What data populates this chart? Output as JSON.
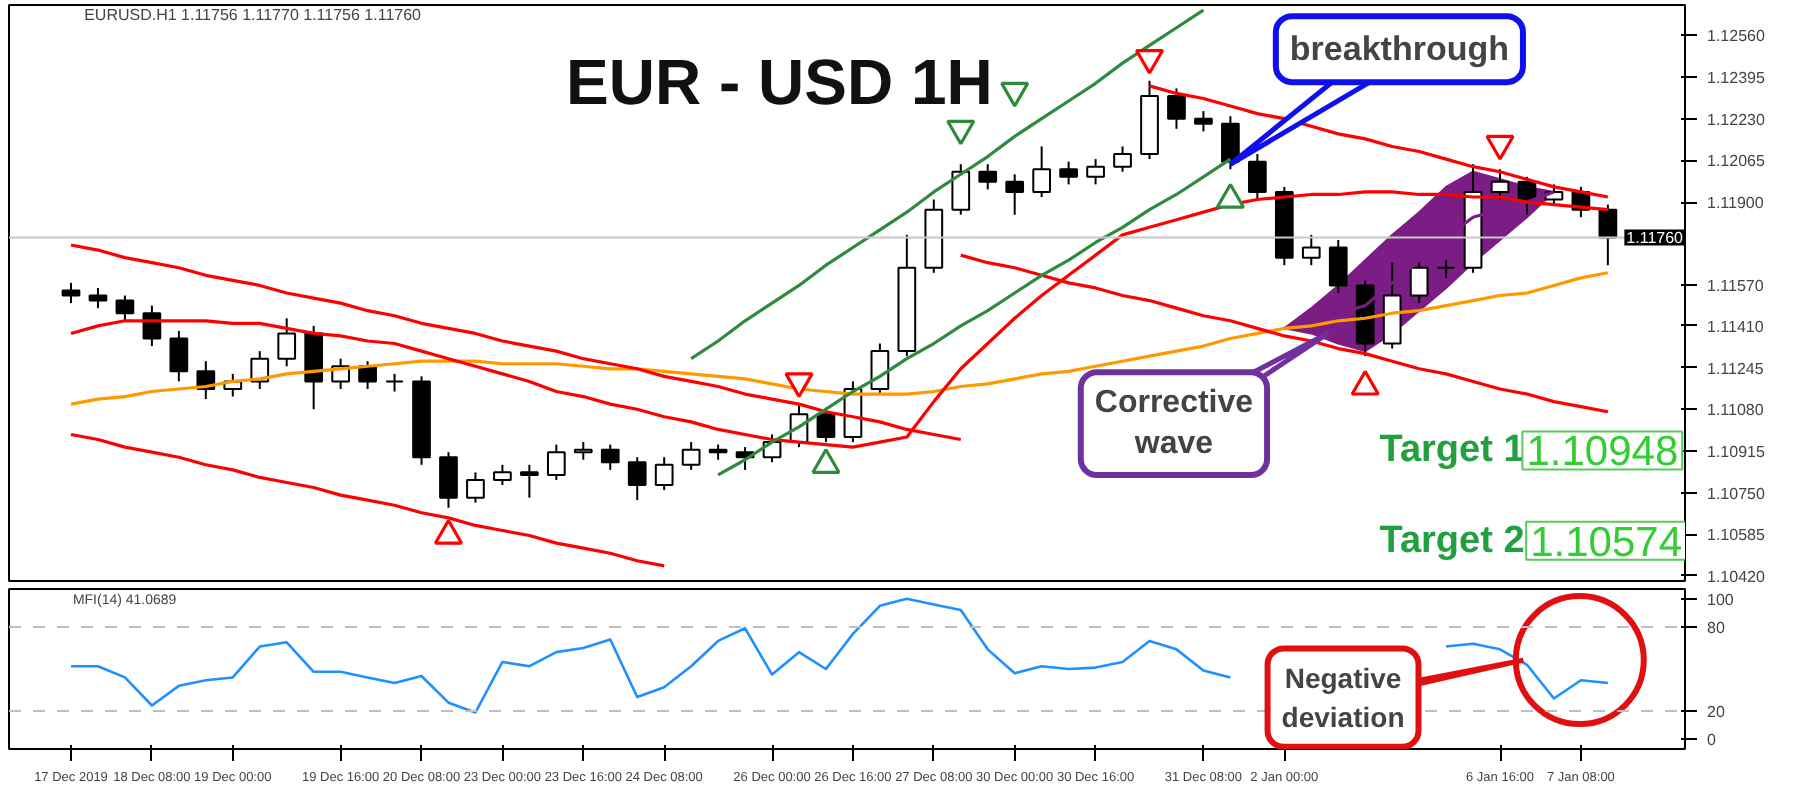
{
  "chart_data": [
    {
      "type": "candlestick",
      "title": "EUR - USD 1H",
      "subtitle": "EURUSD.H1 1.11756 1.11770 1.11756 1.11760",
      "color": "#000000",
      "categories": [
        null,
        null,
        null,
        null,
        null,
        null,
        null,
        null,
        null,
        null,
        null,
        null,
        null,
        null,
        null,
        null,
        null,
        null,
        null,
        null,
        null,
        null,
        null,
        null,
        null,
        null,
        null,
        null,
        null,
        null,
        null,
        null,
        null,
        null,
        null,
        null,
        null,
        null,
        null,
        null,
        null,
        null,
        null,
        null,
        null,
        null,
        null,
        null,
        null,
        null,
        null,
        null,
        null,
        null,
        null,
        null,
        null,
        null
      ],
      "ohlc": [
        [
          1.1155,
          1.1158,
          1.115,
          1.1153
        ],
        [
          1.1153,
          1.1156,
          1.1148,
          1.1151
        ],
        [
          1.1151,
          1.1153,
          1.1143,
          1.1146
        ],
        [
          1.1146,
          1.1149,
          1.1133,
          1.1136
        ],
        [
          1.1136,
          1.1139,
          1.1119,
          1.1123
        ],
        [
          1.1123,
          1.1127,
          1.1112,
          1.1116
        ],
        [
          1.1116,
          1.1122,
          1.1113,
          1.1119
        ],
        [
          1.1119,
          1.1131,
          1.1116,
          1.1128
        ],
        [
          1.1128,
          1.1144,
          1.1125,
          1.1138
        ],
        [
          1.1138,
          1.1141,
          1.1108,
          1.1119
        ],
        [
          1.1119,
          1.1128,
          1.1116,
          1.1125
        ],
        [
          1.1125,
          1.1127,
          1.1116,
          1.1119
        ],
        [
          1.1119,
          1.1122,
          1.1115,
          1.1119
        ],
        [
          1.1119,
          1.1121,
          1.1086,
          1.1089
        ],
        [
          1.1089,
          1.1091,
          1.1069,
          1.1073
        ],
        [
          1.1073,
          1.1083,
          1.1071,
          1.108
        ],
        [
          1.108,
          1.1086,
          1.1078,
          1.1083
        ],
        [
          1.1083,
          1.1086,
          1.1073,
          1.1082
        ],
        [
          1.1082,
          1.1094,
          1.108,
          1.1091
        ],
        [
          1.1091,
          1.1095,
          1.1088,
          1.1092
        ],
        [
          1.1092,
          1.1094,
          1.1084,
          1.1087
        ],
        [
          1.1087,
          1.1089,
          1.1072,
          1.1078
        ],
        [
          1.1078,
          1.1089,
          1.1076,
          1.1086
        ],
        [
          1.1086,
          1.1095,
          1.1084,
          1.1092
        ],
        [
          1.1092,
          1.1094,
          1.1088,
          1.1091
        ],
        [
          1.1091,
          1.1093,
          1.1084,
          1.1089
        ],
        [
          1.1089,
          1.1098,
          1.1087,
          1.1095
        ],
        [
          1.1095,
          1.111,
          1.1093,
          1.1106
        ],
        [
          1.1106,
          1.1108,
          1.1095,
          1.1097
        ],
        [
          1.1097,
          1.1119,
          1.1095,
          1.1116
        ],
        [
          1.1116,
          1.1134,
          1.1114,
          1.1131
        ],
        [
          1.1131,
          1.1177,
          1.1129,
          1.1164
        ],
        [
          1.1164,
          1.1191,
          1.1162,
          1.1187
        ],
        [
          1.1187,
          1.1205,
          1.1185,
          1.1202
        ],
        [
          1.1202,
          1.1205,
          1.1195,
          1.1198
        ],
        [
          1.1198,
          1.1201,
          1.1185,
          1.1194
        ],
        [
          1.1194,
          1.1212,
          1.1192,
          1.1203
        ],
        [
          1.1203,
          1.1206,
          1.1197,
          1.12
        ],
        [
          1.12,
          1.1207,
          1.1197,
          1.1204
        ],
        [
          1.1204,
          1.1212,
          1.1202,
          1.1209
        ],
        [
          1.1209,
          1.1238,
          1.1207,
          1.1232
        ],
        [
          1.1232,
          1.1235,
          1.1219,
          1.1223
        ],
        [
          1.1223,
          1.1226,
          1.1218,
          1.1221
        ],
        [
          1.1221,
          1.1224,
          1.1203,
          1.1206
        ],
        [
          1.1206,
          1.1209,
          1.1191,
          1.1194
        ],
        [
          1.1194,
          1.1196,
          1.1165,
          1.1168
        ],
        [
          1.1168,
          1.1177,
          1.1165,
          1.1172
        ],
        [
          1.1172,
          1.1175,
          1.1154,
          1.1157
        ],
        [
          1.1157,
          1.1159,
          1.1129,
          1.1134
        ],
        [
          1.1134,
          1.1166,
          1.1132,
          1.1153
        ],
        [
          1.1153,
          1.1167,
          1.115,
          1.1164
        ],
        [
          1.1164,
          1.1167,
          1.116,
          1.1164
        ],
        [
          1.1164,
          1.1205,
          1.1162,
          1.1194
        ],
        [
          1.1194,
          1.1203,
          1.1191,
          1.1198
        ],
        [
          1.1198,
          1.12,
          1.1185,
          1.1191
        ],
        [
          1.1191,
          1.1197,
          1.1189,
          1.1194
        ],
        [
          1.1194,
          1.1196,
          1.1184,
          1.1187
        ],
        [
          1.1187,
          1.1189,
          1.1165,
          1.1176
        ]
      ],
      "series": [
        {
          "type": "line",
          "color": "#7b1d84",
          "lower": [
            null,
            null,
            null,
            null,
            null,
            null,
            null,
            null,
            null,
            null,
            null,
            null,
            null,
            null,
            null,
            null,
            null,
            null,
            null,
            null,
            null,
            null,
            null,
            null,
            null,
            null,
            null,
            null,
            null,
            null,
            null,
            null,
            null,
            null,
            null,
            null,
            null,
            null,
            null,
            null,
            null,
            null,
            null,
            null,
            null,
            1.114,
            1.1138,
            1.1134,
            1.1131,
            1.1138,
            1.1147,
            1.1156,
            1.1166,
            1.1175,
            1.1184,
            1.1194,
            null,
            null
          ],
          "upper": [
            null,
            null,
            null,
            null,
            null,
            null,
            null,
            null,
            null,
            null,
            null,
            null,
            null,
            null,
            null,
            null,
            null,
            null,
            null,
            null,
            null,
            null,
            null,
            null,
            null,
            null,
            null,
            null,
            null,
            null,
            null,
            null,
            null,
            null,
            null,
            null,
            null,
            null,
            null,
            null,
            null,
            null,
            null,
            null,
            null,
            1.114,
            1.1148,
            1.1157,
            1.1167,
            1.1177,
            1.1186,
            1.1196,
            1.1202,
            1.1199,
            1.1196,
            1.1194,
            null,
            null
          ],
          "values": [
            null,
            null,
            null,
            null,
            null,
            null,
            null,
            null,
            null,
            null,
            null,
            null,
            null,
            null,
            null,
            null,
            null,
            null,
            null,
            null,
            null,
            null,
            null,
            null,
            null,
            null,
            null,
            null,
            null,
            null,
            null,
            null,
            null,
            null,
            null,
            null,
            null,
            null,
            null,
            null,
            null,
            null,
            null,
            null,
            null,
            1.114,
            1.1143,
            1.1146,
            1.1149,
            1.1158,
            1.1167,
            1.1176,
            1.1184,
            1.1187,
            1.119,
            1.1194,
            null,
            null
          ]
        },
        {
          "type": "line",
          "color": "#ff9900",
          "values": [
            1.111,
            1.1112,
            1.1113,
            1.1115,
            1.1116,
            1.1117,
            1.1119,
            1.112,
            1.1122,
            1.1123,
            1.1124,
            1.1125,
            1.1126,
            1.1127,
            1.1127,
            1.1127,
            1.1126,
            1.1126,
            1.1126,
            1.1125,
            1.1124,
            1.1124,
            1.1123,
            1.1122,
            1.1121,
            1.112,
            1.1118,
            1.1116,
            1.1115,
            1.1114,
            1.1114,
            1.1114,
            1.1115,
            1.1117,
            1.1118,
            1.112,
            1.1122,
            1.1123,
            1.1125,
            1.1127,
            1.1129,
            1.1131,
            1.1133,
            1.1136,
            1.1138,
            1.114,
            1.1141,
            1.1143,
            1.1144,
            1.1146,
            1.1147,
            1.1149,
            1.1151,
            1.1153,
            1.1154,
            1.1157,
            1.116,
            1.1162
          ]
        },
        {
          "type": "line",
          "color": "#ff0000",
          "values": [
            1.1138,
            1.1141,
            1.1143,
            1.1143,
            1.1143,
            1.1143,
            1.1142,
            1.1142,
            1.114,
            1.1138,
            1.1137,
            1.1135,
            1.1134,
            1.1131,
            1.1128,
            1.1125,
            1.1122,
            1.1119,
            1.1115,
            1.1113,
            1.111,
            1.1108,
            1.1105,
            1.1103,
            1.11,
            1.1098,
            1.1096,
            1.1095,
            1.1094,
            1.1093,
            1.1095,
            1.1097,
            1.1111,
            1.1124,
            1.1134,
            1.1144,
            1.1153,
            1.1161,
            1.1169,
            1.1177,
            1.118,
            1.1183,
            1.1186,
            1.1189,
            1.1191,
            1.1192,
            1.1193,
            1.1193,
            1.1194,
            1.1194,
            1.1193,
            1.1193,
            1.1192,
            1.1192,
            1.119,
            1.1189,
            1.1188,
            1.1187
          ]
        },
        {
          "type": "line",
          "color": "#ff0000",
          "values": [
            1.1173,
            1.1171,
            1.1168,
            1.1166,
            1.1164,
            1.1161,
            1.1159,
            1.1157,
            1.1154,
            1.1152,
            1.115,
            1.1147,
            1.1145,
            1.1142,
            1.114,
            1.1138,
            1.1135,
            1.1133,
            1.1131,
            1.1128,
            1.1126,
            1.1124,
            1.1121,
            1.1119,
            1.1117,
            1.1114,
            1.1112,
            1.111,
            1.1107,
            1.1105,
            1.1103,
            1.11,
            1.1098,
            1.1096,
            null,
            null,
            null,
            null,
            null,
            null,
            null,
            null,
            null,
            null,
            null,
            null,
            null,
            null,
            null,
            null,
            null,
            null,
            null,
            null,
            null,
            null,
            null,
            null
          ]
        },
        {
          "type": "line",
          "color": "#ff0000",
          "values": [
            1.1098,
            1.1096,
            1.1093,
            1.1091,
            1.1089,
            1.1086,
            1.1084,
            1.1081,
            1.1079,
            1.1077,
            1.1074,
            1.1072,
            1.107,
            1.1067,
            1.1065,
            1.1062,
            1.106,
            1.1058,
            1.1055,
            1.1053,
            1.1051,
            1.1048,
            1.1046,
            null,
            null,
            null,
            null,
            null,
            null,
            null,
            null,
            null,
            null,
            null,
            null,
            null,
            null,
            null,
            null,
            null,
            null,
            null,
            null,
            null,
            null,
            null,
            null,
            null,
            null,
            null,
            null,
            null,
            null,
            null,
            null,
            null,
            null,
            null
          ]
        },
        {
          "type": "line",
          "color": "#ff0000",
          "values": [
            null,
            null,
            null,
            null,
            null,
            null,
            null,
            null,
            null,
            null,
            null,
            null,
            null,
            null,
            null,
            null,
            null,
            null,
            null,
            null,
            null,
            null,
            null,
            null,
            null,
            null,
            null,
            null,
            null,
            null,
            null,
            null,
            null,
            null,
            null,
            null,
            null,
            null,
            null,
            null,
            1.1236,
            1.1233,
            1.1231,
            1.1228,
            1.1225,
            1.1223,
            1.122,
            1.1217,
            1.1215,
            1.1212,
            1.121,
            1.1207,
            1.1204,
            1.1202,
            1.1199,
            1.1196,
            1.1194,
            1.1192
          ]
        },
        {
          "type": "line",
          "color": "#ff0000",
          "values": [
            null,
            null,
            null,
            null,
            null,
            null,
            null,
            null,
            null,
            null,
            null,
            null,
            null,
            null,
            null,
            null,
            null,
            null,
            null,
            null,
            null,
            null,
            null,
            null,
            null,
            null,
            null,
            null,
            null,
            null,
            null,
            null,
            null,
            1.1169,
            1.1166,
            1.1164,
            1.1161,
            1.1158,
            1.1156,
            1.1153,
            1.1151,
            1.1148,
            1.1145,
            1.1143,
            1.114,
            1.1137,
            1.1135,
            1.1132,
            1.113,
            1.1127,
            1.1124,
            1.1122,
            1.1119,
            1.1116,
            1.1114,
            1.1111,
            1.1109,
            1.1107
          ]
        },
        {
          "type": "line",
          "color": "#2e8b3e",
          "values": [
            null,
            null,
            null,
            null,
            null,
            null,
            null,
            null,
            null,
            null,
            null,
            null,
            null,
            null,
            null,
            null,
            null,
            null,
            null,
            null,
            null,
            null,
            null,
            1.1128,
            1.1135,
            1.1143,
            1.115,
            1.1157,
            1.1165,
            1.1172,
            1.1179,
            1.1186,
            1.1194,
            1.1201,
            1.1208,
            1.1216,
            1.1223,
            1.123,
            1.1237,
            1.1245,
            1.1252,
            1.1259,
            1.1266,
            null,
            null,
            null,
            null,
            null,
            null,
            null,
            null,
            null,
            null,
            null,
            null,
            null,
            null,
            null
          ]
        },
        {
          "type": "line",
          "color": "#2e8b3e",
          "values": [
            null,
            null,
            null,
            null,
            null,
            null,
            null,
            null,
            null,
            null,
            null,
            null,
            null,
            null,
            null,
            null,
            null,
            null,
            null,
            null,
            null,
            null,
            null,
            null,
            1.1082,
            1.1088,
            1.1095,
            1.1101,
            1.1108,
            1.1115,
            1.1121,
            1.1128,
            1.1134,
            1.1141,
            1.1147,
            1.1154,
            1.1161,
            1.1167,
            1.1174,
            1.118,
            1.1187,
            1.1193,
            1.12,
            1.1207,
            null,
            null,
            null,
            null,
            null,
            null,
            null,
            null,
            null,
            null,
            null,
            null,
            null,
            null
          ]
        },
        {
          "type": "scatter",
          "marker": "triangle",
          "color": "#ff0000",
          "values": [
            null,
            null,
            null,
            null,
            null,
            null,
            null,
            null,
            null,
            null,
            null,
            null,
            null,
            null,
            null,
            null,
            null,
            null,
            null,
            null,
            null,
            null,
            null,
            null,
            null,
            null,
            null,
            1.1119,
            null,
            null,
            null,
            null,
            null,
            null,
            null,
            null,
            null,
            null,
            null,
            null,
            1.1247,
            null,
            null,
            null,
            null,
            null,
            null,
            null,
            null,
            null,
            null,
            null,
            null,
            1.1213,
            null,
            null,
            null,
            null
          ]
        },
        {
          "type": "scatter",
          "marker": "triangle",
          "color": "#ff0000",
          "values": [
            null,
            null,
            null,
            null,
            null,
            null,
            null,
            null,
            null,
            null,
            null,
            null,
            null,
            null,
            1.1058,
            null,
            null,
            null,
            null,
            null,
            null,
            null,
            null,
            null,
            null,
            null,
            null,
            null,
            null,
            null,
            null,
            null,
            null,
            null,
            null,
            null,
            null,
            null,
            null,
            null,
            null,
            null,
            null,
            null,
            null,
            null,
            null,
            null,
            1.1117,
            null,
            null,
            null,
            null,
            null,
            null,
            null,
            null,
            null
          ]
        },
        {
          "type": "scatter",
          "marker": "triangle",
          "color": "#2e8b3e",
          "values": [
            null,
            null,
            null,
            null,
            null,
            null,
            null,
            null,
            null,
            null,
            null,
            null,
            null,
            null,
            null,
            null,
            null,
            null,
            null,
            null,
            null,
            null,
            null,
            null,
            null,
            null,
            null,
            null,
            null,
            null,
            null,
            null,
            null,
            1.1219,
            null,
            1.1234,
            null,
            null,
            null,
            null,
            null,
            null,
            null,
            null,
            null,
            null,
            null,
            null,
            null,
            null,
            null,
            null,
            null,
            null,
            null,
            null,
            null,
            null
          ]
        },
        {
          "type": "scatter",
          "marker": "triangle",
          "color": "#2e8b3e",
          "values": [
            null,
            null,
            null,
            null,
            null,
            null,
            null,
            null,
            null,
            null,
            null,
            null,
            null,
            null,
            null,
            null,
            null,
            null,
            null,
            null,
            null,
            null,
            null,
            null,
            null,
            null,
            null,
            null,
            1.1086,
            null,
            null,
            null,
            null,
            null,
            null,
            null,
            null,
            null,
            null,
            null,
            null,
            null,
            null,
            1.1191,
            null,
            null,
            null,
            null,
            null,
            null,
            null,
            null,
            null,
            null,
            null,
            null,
            null,
            null
          ]
        }
      ],
      "ylim": [
        1.104,
        1.1268
      ],
      "yticks": [
        {
          "value": 1.1256,
          "label": "1.12560"
        },
        {
          "value": 1.12395,
          "label": "1.12395"
        },
        {
          "value": 1.1223,
          "label": "1.12230"
        },
        {
          "value": 1.12065,
          "label": "1.12065"
        },
        {
          "value": 1.119,
          "label": "1.11900"
        },
        {
          "value": 1.1157,
          "label": "1.11570"
        },
        {
          "value": 1.1141,
          "label": "1.11410"
        },
        {
          "value": 1.11245,
          "label": "1.11245"
        },
        {
          "value": 1.1108,
          "label": "1.11080"
        },
        {
          "value": 1.10915,
          "label": "1.10915"
        },
        {
          "value": 1.1075,
          "label": "1.10750"
        },
        {
          "value": 1.10585,
          "label": "1.10585"
        },
        {
          "value": 1.1042,
          "label": "1.10420"
        }
      ],
      "tick_labels": "y",
      "ref_lines": [
        {
          "axis": "y",
          "value": 1.1176,
          "label": "1.11760",
          "color": "#c8c8c8"
        }
      ],
      "annotations": [
        "breakthrough",
        "Corrective\nwave",
        "Target 1",
        "1.10948",
        "Target 2",
        "1.10574"
      ]
    },
    {
      "type": "line",
      "title": "MFI(14) 41.0689",
      "color": "#1e90ff",
      "categories": [
        "17 Dec 2019",
        null,
        null,
        "18 Dec 08:00",
        null,
        null,
        "19 Dec 00:00",
        null,
        null,
        null,
        "19 Dec 16:00",
        null,
        null,
        "20 Dec 08:00",
        null,
        null,
        "23 Dec 00:00",
        null,
        null,
        "23 Dec 16:00",
        null,
        null,
        "24 Dec 08:00",
        null,
        null,
        null,
        "26 Dec 00:00",
        null,
        null,
        "26 Dec 16:00",
        null,
        null,
        "27 Dec 08:00",
        null,
        null,
        "30 Dec 00:00",
        null,
        null,
        "30 Dec 16:00",
        null,
        null,
        null,
        "31 Dec 08:00",
        null,
        null,
        "2 Jan 00:00",
        null,
        null,
        null,
        null,
        null,
        null,
        null,
        "6 Jan 16:00",
        null,
        null,
        "7 Jan 08:00",
        null
      ],
      "values": [
        52,
        52,
        44,
        24,
        38,
        42,
        44,
        66,
        69,
        48,
        48,
        44,
        40,
        45,
        26,
        19,
        55,
        52,
        62,
        65,
        71,
        30,
        37,
        52,
        70,
        79,
        46,
        62,
        50,
        75,
        95,
        100,
        96,
        92,
        64,
        47,
        52,
        50,
        51,
        55,
        70,
        64,
        49,
        44,
        null,
        null,
        null,
        null,
        null,
        null,
        null,
        66,
        68,
        64,
        53,
        29,
        42,
        40
      ],
      "ylim": [
        -7,
        107
      ],
      "yticks": [
        0,
        20,
        80,
        100
      ],
      "ref_lines": [
        {
          "axis": "y",
          "value": 20,
          "color": "#c0c0c0",
          "line_style": "dashed"
        },
        {
          "axis": "y",
          "value": 80,
          "color": "#c0c0c0",
          "line_style": "dashed"
        }
      ],
      "annotations": [
        "Negative\ndeviation"
      ]
    }
  ]
}
